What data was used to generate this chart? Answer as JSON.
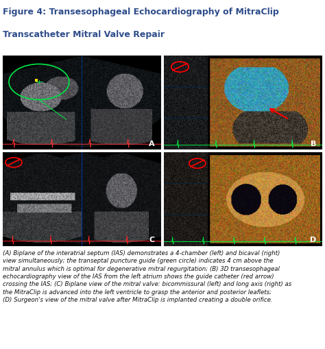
{
  "title_line1": "Figure 4: Transesophageal Echocardiography of MitraClip",
  "title_line2": "Transcatheter Mitral Valve Repair",
  "title_color": "#2e4d8a",
  "title_fontsize": 9.0,
  "bg_color": "#ffffff",
  "panel_labels": [
    "A",
    "B",
    "C",
    "D"
  ],
  "panel_label_color": "#ffffff",
  "caption": "(A) Biplane of the interatrial septum (IAS) demonstrates a 4-chamber (left) and bicaval (right)\nview simultaneously; the transeptal puncture guide (green circle) indicates 4 cm above the\nmitral annulus which is optimal for degenerative mitral regurgitation; (B) 3D transesophageal\nechocardiography view of the IAS from the left atrium shows the guide catheter (red arrow)\ncrossing the IAS; (C) Biplane view of the mitral valve: bicommissural (left) and long axis (right) as\nthe MitraClip is advanced into the left ventricle to grasp the anterior and posterior leaflets;\n(D) Surgeon's view of the mitral valve after MitraClip is implanted creating a double orifice.",
  "caption_fontsize": 6.2,
  "caption_color": "#111111",
  "separator_color": "#b0b0b0",
  "figure_width": 4.74,
  "figure_height": 5.1
}
